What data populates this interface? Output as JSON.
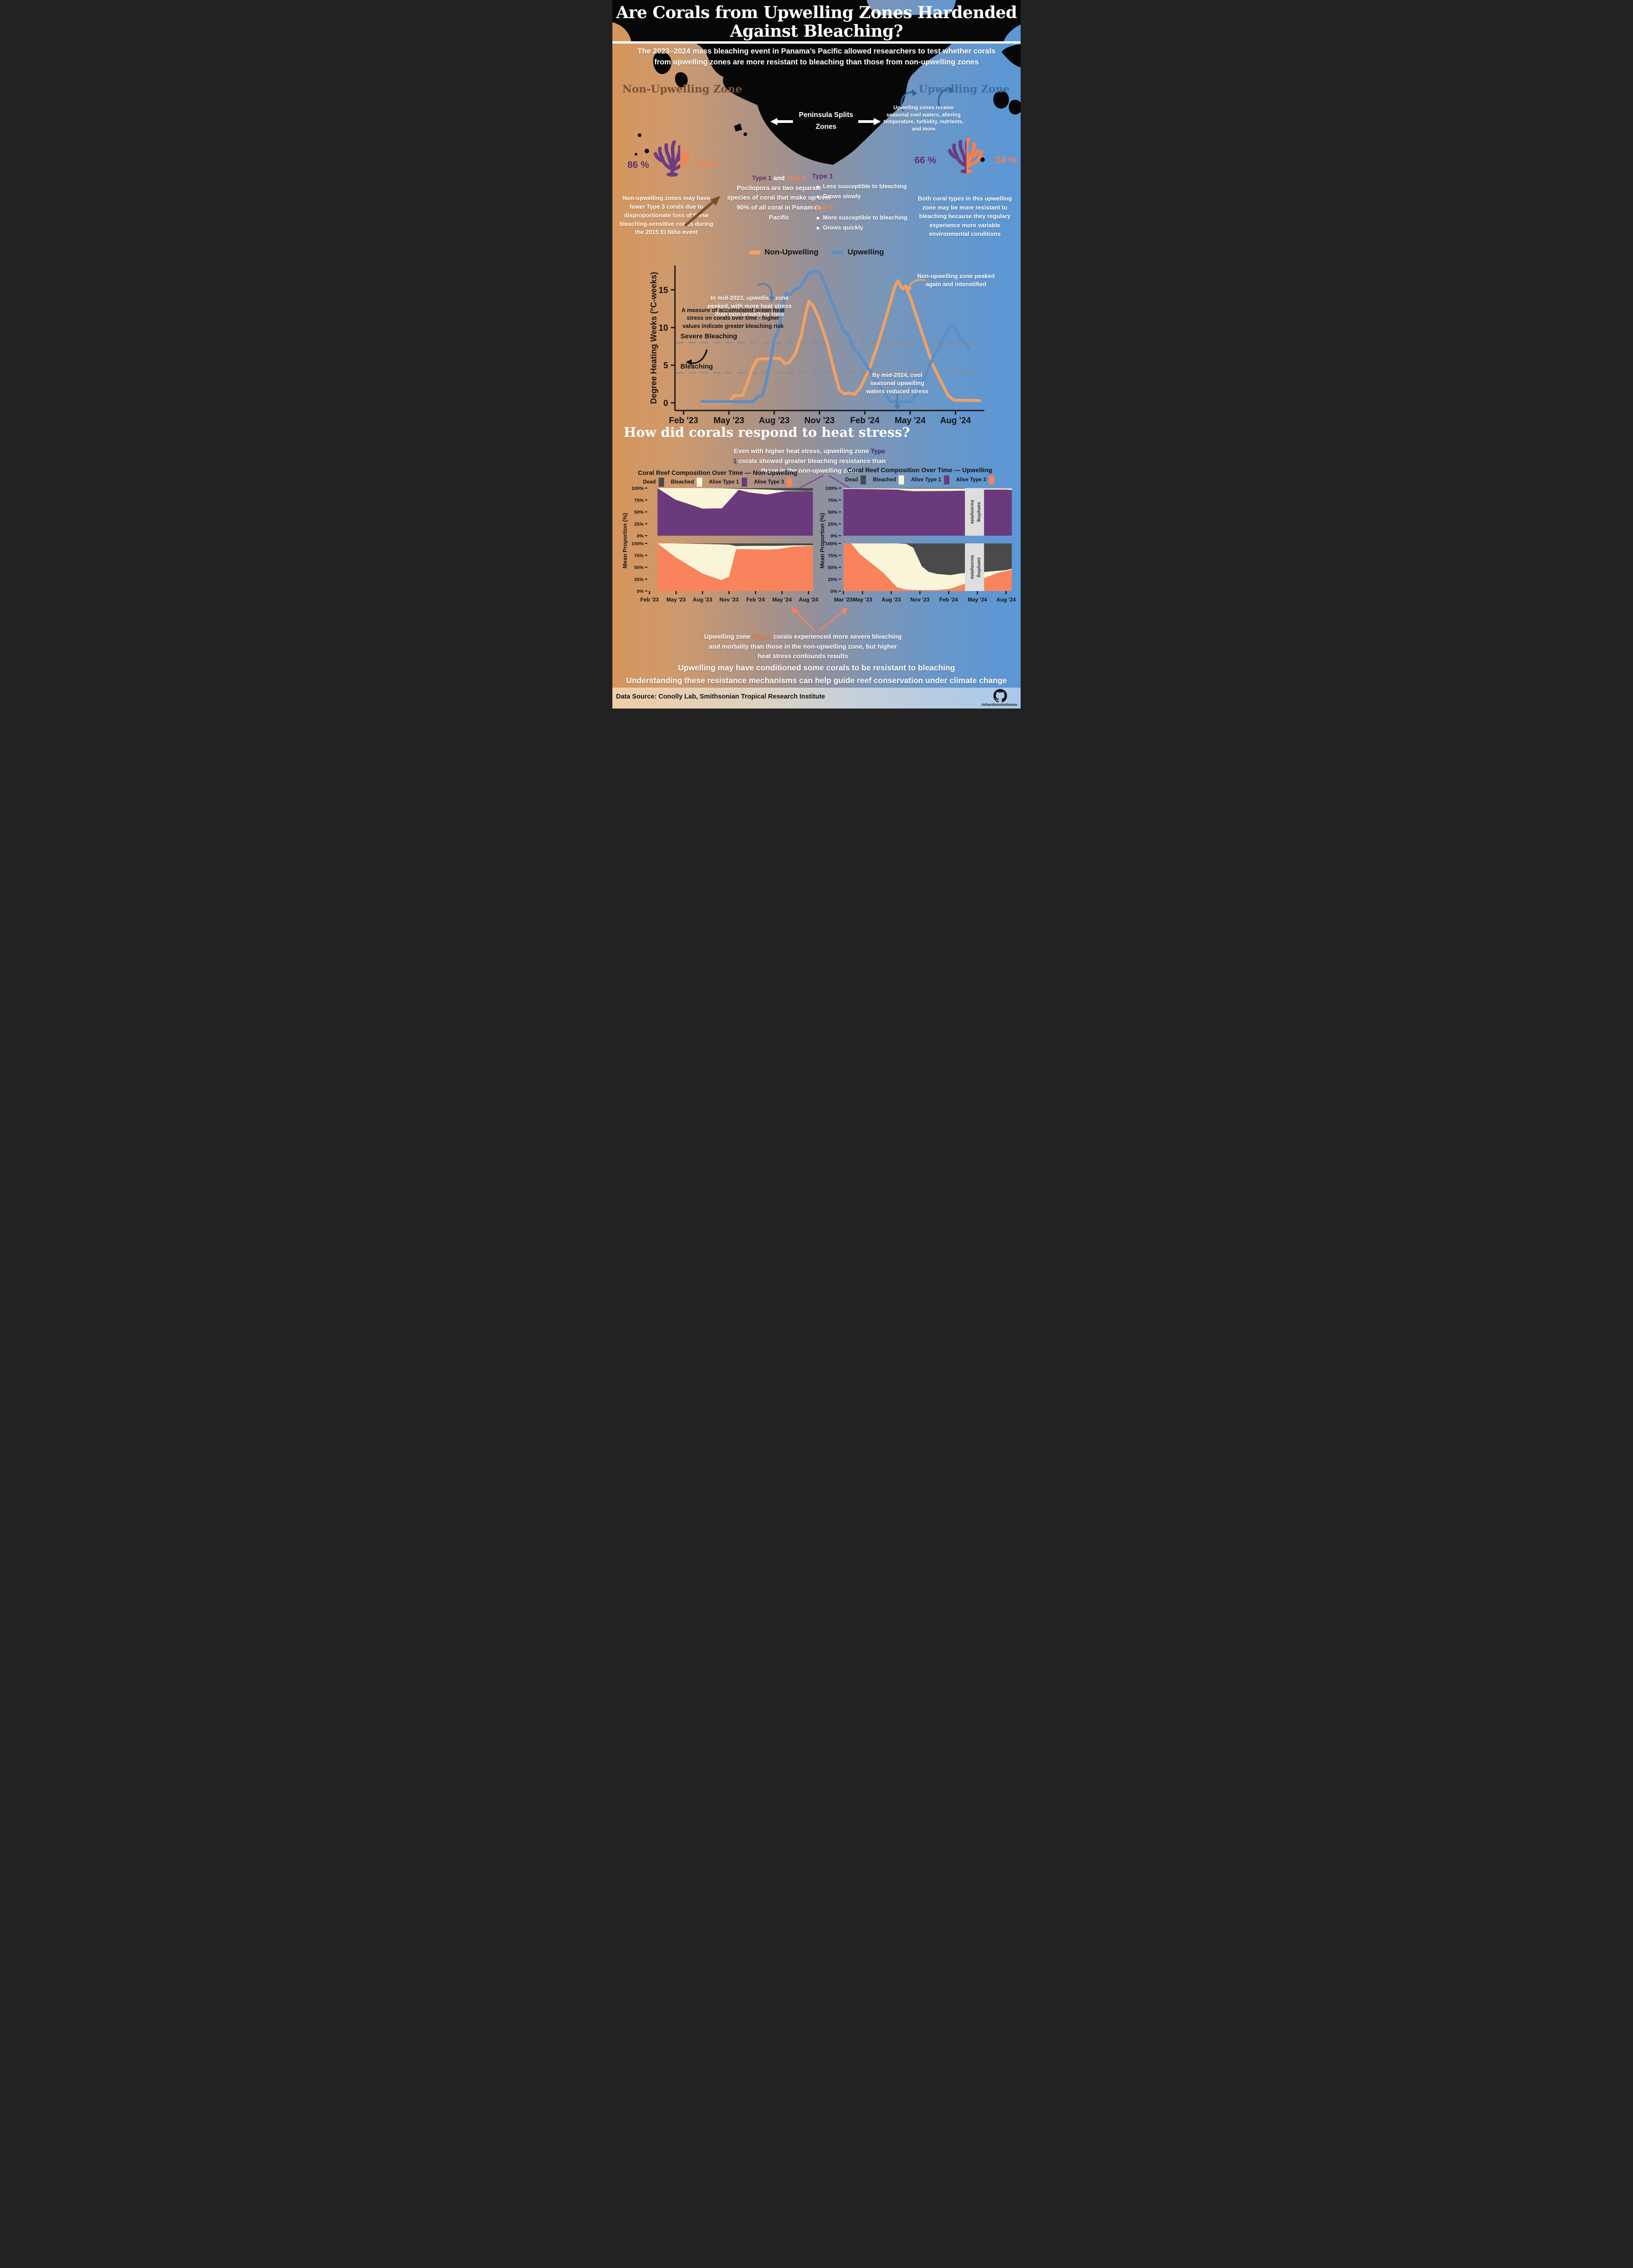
{
  "title": {
    "line1": "Are Corals from Upwelling Zones Hardended",
    "line2": "Against Bleaching?"
  },
  "subtitle": "The 2023–2024 mass bleaching event in Panama’s Pacific allowed researchers to test whether corals from upwelling zones are more resistant to bleaching than those from non-upwelling zones",
  "zones": {
    "left_label": "Non-Upwelling Zone",
    "right_label": "Upwelling Zone"
  },
  "map": {
    "peninsula_label_line1": "Peninsula Splits",
    "peninsula_label_line2": "Zones",
    "upwelling_note": "Upwelling zones receive seasonal cool waters, altering temperature, turbidity, nutrients, and more"
  },
  "left_coral": {
    "type1_pct": "86 %",
    "type3_pct": "14 %",
    "note": "Non-upwelling zones may have fewer Type 3 corals due to disproportionate loss of these bleaching-sensitive corals during the 2015 El Niño event"
  },
  "right_coral": {
    "type1_pct": "66 %",
    "type3_pct": "34 %",
    "note": "Both coral types in this upwelling zone may be more resistant to bleaching because they regulary experience more variable environmental conditions"
  },
  "species_info": {
    "heading_type1": "Type 1",
    "heading_and": " and ",
    "heading_type3": "Type 3",
    "body": "Pocilopora are two separate species of coral that make up over 90% of all coral in Panama's Pacific"
  },
  "type1_traits": {
    "heading": "Type 1",
    "bullets": [
      "Less susceptible to bleaching",
      "Grows slowly"
    ]
  },
  "type3_traits": {
    "heading": "Type 3",
    "bullets": [
      "More susceptible to bleaching",
      "Grows quickly"
    ]
  },
  "dhw_annotations": {
    "mid2023": "In mid-2023, upwelling zone peaked, with more heat stress than non-upwelling zone",
    "dhw_definition": "A measure of accumulated ocean heat stress on corals over time - higher values indicate greater bleaching risk",
    "nonupwelling_peak": "Non-upwelling zone peaked again and intenstified",
    "mid2024": "By mid-2024, cool seasonal upwelling waters reduced stress"
  },
  "section2": {
    "heading": "How did corals respond to heat stress?",
    "top_note_pre": "Even with higher heat stress, upwelling zone ",
    "top_note_type": "Type 1",
    "top_note_post": " corals showed greater bleaching resistance than those in the non-upwelling zone",
    "bottom_note_pre": "Upwelling zone ",
    "bottom_note_type": "Type 3",
    "bottom_note_post": " corals experienced more severe bleaching and mortality than those in the non-upwelling zone, but higher heat stress confounds results"
  },
  "conclusion": {
    "line1": "Upwelling may have conditioned some corals to be resistant to bleaching",
    "line2": "Understanding these resistance mechanisms can help guide reef conservation under climate change"
  },
  "footer": {
    "source": "Data Source: Conolly Lab, Smithsonian Tropical Research Institute",
    "credit": "richardmonteslemus"
  },
  "colors": {
    "accent_purple": "#6b3a7d",
    "accent_orange_coral": "#f8835c",
    "line_nonupwelling": "#f2a161",
    "line_upwelling": "#5d8fc4",
    "bleached_cream": "#faf5d8",
    "dead_gray": "#4a4a4a",
    "bg_left": "#d6955c",
    "bg_right": "#5a97d6"
  },
  "chart_data": [
    {
      "id": "dhw",
      "type": "line",
      "ylabel": "Degree Heating Weeks (°C-weeks)",
      "x_tick_labels": [
        "Feb '23",
        "May '23",
        "Aug '23",
        "Nov '23",
        "Feb '24",
        "May '24",
        "Aug '24"
      ],
      "x_tick_months": [
        0,
        3,
        6,
        9,
        12,
        15,
        18
      ],
      "y_ticks": [
        0,
        5,
        10,
        15
      ],
      "ylim": [
        0,
        18.5
      ],
      "grid": false,
      "legend_position": "top",
      "thresholds": [
        {
          "label": "Bleaching",
          "value": 4
        },
        {
          "label": "Severe Bleaching",
          "value": 8
        }
      ],
      "legend": [
        {
          "name": "Non-Upwelling",
          "color": "#f2a161"
        },
        {
          "name": "Upwelling",
          "color": "#5d8fc4"
        }
      ],
      "series": [
        {
          "name": "Non-Upwelling",
          "color": "#f2a161",
          "points": [
            [
              1.2,
              0
            ],
            [
              3.0,
              0
            ],
            [
              3.3,
              0.9
            ],
            [
              3.9,
              1
            ],
            [
              4.2,
              2.5
            ],
            [
              4.6,
              4.8
            ],
            [
              4.9,
              5.8
            ],
            [
              5.9,
              5.9
            ],
            [
              6.4,
              5.9
            ],
            [
              6.7,
              5.2
            ],
            [
              7.0,
              5.4
            ],
            [
              7.4,
              6.5
            ],
            [
              7.8,
              9
            ],
            [
              8.1,
              12
            ],
            [
              8.3,
              13.5
            ],
            [
              8.6,
              12.8
            ],
            [
              9.0,
              11
            ],
            [
              9.5,
              8
            ],
            [
              10.0,
              4
            ],
            [
              10.3,
              1.8
            ],
            [
              10.6,
              1.2
            ],
            [
              11.0,
              1.3
            ],
            [
              11.3,
              1.1
            ],
            [
              11.7,
              2
            ],
            [
              12.3,
              4.5
            ],
            [
              12.9,
              8
            ],
            [
              13.5,
              12
            ],
            [
              14.0,
              15.5
            ],
            [
              14.2,
              16.2
            ],
            [
              14.5,
              15.1
            ],
            [
              14.7,
              15.5
            ],
            [
              15.0,
              14
            ],
            [
              15.5,
              11
            ],
            [
              16.0,
              8
            ],
            [
              16.5,
              5
            ],
            [
              17.0,
              3
            ],
            [
              17.5,
              1
            ],
            [
              17.9,
              0.35
            ],
            [
              19.6,
              0.3
            ]
          ]
        },
        {
          "name": "Upwelling",
          "color": "#5d8fc4",
          "points": [
            [
              1.2,
              0.15
            ],
            [
              4.6,
              0.15
            ],
            [
              4.9,
              0.8
            ],
            [
              5.2,
              1
            ],
            [
              5.5,
              3
            ],
            [
              5.8,
              6
            ],
            [
              6.0,
              8.5
            ],
            [
              6.2,
              9.2
            ],
            [
              6.4,
              10.8
            ],
            [
              6.6,
              13
            ],
            [
              6.8,
              14.6
            ],
            [
              7.1,
              14.4
            ],
            [
              7.4,
              15.1
            ],
            [
              7.7,
              15.3
            ],
            [
              8.0,
              16.3
            ],
            [
              8.3,
              17.2
            ],
            [
              8.7,
              17.5
            ],
            [
              9.0,
              17.4
            ],
            [
              9.3,
              16
            ],
            [
              9.7,
              14
            ],
            [
              10.2,
              11.5
            ],
            [
              10.6,
              9.5
            ],
            [
              10.9,
              9.1
            ],
            [
              11.1,
              8
            ],
            [
              11.4,
              6.8
            ],
            [
              11.6,
              6.5
            ],
            [
              12.0,
              5.2
            ],
            [
              12.5,
              3.8
            ],
            [
              13.0,
              2.2
            ],
            [
              13.4,
              1
            ],
            [
              13.7,
              0.15
            ],
            [
              15.1,
              0.15
            ],
            [
              15.5,
              1.5
            ],
            [
              16.0,
              3.5
            ],
            [
              16.4,
              5.5
            ],
            [
              16.8,
              7
            ],
            [
              17.1,
              8.2
            ],
            [
              17.3,
              9
            ],
            [
              17.5,
              9.6
            ],
            [
              17.7,
              10.5
            ],
            [
              17.9,
              10.2
            ],
            [
              18.1,
              9.4
            ],
            [
              18.3,
              8.6
            ],
            [
              18.5,
              8.4
            ],
            [
              18.7,
              7.8
            ],
            [
              18.9,
              7.2
            ]
          ]
        }
      ]
    },
    {
      "id": "composition_nonupwelling",
      "type": "area",
      "title": "Coral Reef Composition Over Time — Non-Upwelling",
      "ylabel": "Mean Proportion (%)",
      "y_tick_labels": [
        "0%",
        "25%",
        "50%",
        "75%",
        "100%"
      ],
      "x_tick_labels": [
        "Feb '23",
        "May '23",
        "Aug '23",
        "Nov '23",
        "Feb '24",
        "May '24",
        "Aug '24"
      ],
      "x_tick_months": [
        0,
        3,
        6,
        9,
        12,
        15,
        18
      ],
      "bleached_color": "#faf5d8",
      "dead_color": "#4a4a4a",
      "legend": [
        {
          "name": "Dead",
          "color": "#4a4a4a"
        },
        {
          "name": "Bleached",
          "color": "#faf5d8"
        },
        {
          "name": "Alive Type 1",
          "color": "#6b3a7d"
        },
        {
          "name": "Alive Type 3",
          "color": "#f8835c"
        }
      ],
      "panels": [
        {
          "alive_name": "Alive Type 1",
          "alive_color": "#6b3a7d",
          "x": [
            0.9,
            2.9,
            6.0,
            8.2,
            10.1,
            11.2,
            13.3,
            15.4,
            17.8,
            18.5
          ],
          "alive": [
            100,
            76,
            57,
            57.5,
            96.5,
            91,
            86.5,
            93.5,
            93.5,
            93
          ],
          "bleached": [
            0,
            24,
            43,
            42.2,
            2,
            7,
            10.5,
            1.5,
            0.5,
            1
          ],
          "dead": [
            0,
            0,
            0,
            0.3,
            1.5,
            2,
            3,
            5,
            6,
            6
          ]
        },
        {
          "alive_name": "Alive Type 3",
          "alive_color": "#f8835c",
          "x": [
            0.9,
            2.9,
            6.0,
            8.1,
            9.0,
            9.8,
            11.2,
            13.3,
            14.5,
            16.2,
            18.5
          ],
          "alive": [
            100,
            71.5,
            36.7,
            23,
            30,
            88,
            88,
            87,
            88,
            93,
            95
          ],
          "bleached": [
            0,
            28.5,
            62.3,
            75,
            67.5,
            6.5,
            7,
            8,
            7,
            3,
            1
          ],
          "dead": [
            0,
            0,
            1,
            2,
            2.5,
            5.5,
            5,
            5,
            5,
            4,
            4
          ]
        }
      ]
    },
    {
      "id": "composition_upwelling",
      "type": "area",
      "title": "Coral Reef Composition Over Time — Upwelling",
      "ylabel": "Mean Proportion (%)",
      "y_tick_labels": [
        "0%",
        "25%",
        "50%",
        "75%",
        "100%"
      ],
      "x_tick_labels": [
        "Mar '23",
        "May '23",
        "Aug '23",
        "Nov '23",
        "Feb '24",
        "May '24",
        "Aug '24"
      ],
      "x_tick_months": [
        1,
        3,
        6,
        9,
        12,
        15,
        18
      ],
      "bleached_color": "#faf5d8",
      "dead_color": "#4a4a4a",
      "incomplete_band": {
        "from": 13.7,
        "to": 15.7,
        "label": "Incomplete sampling"
      },
      "legend": [
        {
          "name": "Dead",
          "color": "#4a4a4a"
        },
        {
          "name": "Bleached",
          "color": "#faf5d8"
        },
        {
          "name": "Alive Type 1",
          "color": "#6b3a7d"
        },
        {
          "name": "Alive Type 3",
          "color": "#f8835c"
        }
      ],
      "panels": [
        {
          "alive_name": "Alive Type 1",
          "alive_color": "#6b3a7d",
          "x": [
            1,
            2,
            6.6,
            7.6,
            8.3,
            12.2,
            13.2,
            13.7,
            15.7,
            18,
            18.6
          ],
          "alive": [
            98,
            98.2,
            97,
            94.5,
            93.5,
            94,
            94.5,
            94.5,
            97,
            97,
            96
          ],
          "bleached": [
            1.7,
            1.5,
            2.5,
            4.5,
            5.5,
            5,
            4.5,
            4.5,
            2.7,
            2.5,
            3.5
          ],
          "dead": [
            0.3,
            0.3,
            0.5,
            1,
            1,
            1,
            1,
            1,
            0.3,
            0.5,
            0.5
          ]
        },
        {
          "alive_name": "Alive Type 3",
          "alive_color": "#f8835c",
          "x": [
            1,
            1.8,
            2.7,
            5.2,
            6.6,
            7.6,
            8.3,
            9.2,
            9.9,
            10.8,
            12.2,
            13.2,
            13.7,
            15.7,
            17.1,
            18,
            18.6
          ],
          "alive": [
            100,
            100,
            78,
            38,
            8,
            3,
            2.5,
            2,
            2,
            2,
            5,
            12,
            15,
            27,
            38,
            42,
            45
          ],
          "bleached": [
            0,
            0,
            22,
            62,
            92,
            96,
            88.5,
            50,
            38.5,
            34,
            28.5,
            25,
            23,
            13,
            4.5,
            2,
            2
          ],
          "dead": [
            0,
            0,
            0,
            0,
            0,
            1,
            9,
            48,
            59.5,
            64,
            66.5,
            63,
            62,
            60,
            57.5,
            56,
            53
          ]
        }
      ]
    }
  ]
}
